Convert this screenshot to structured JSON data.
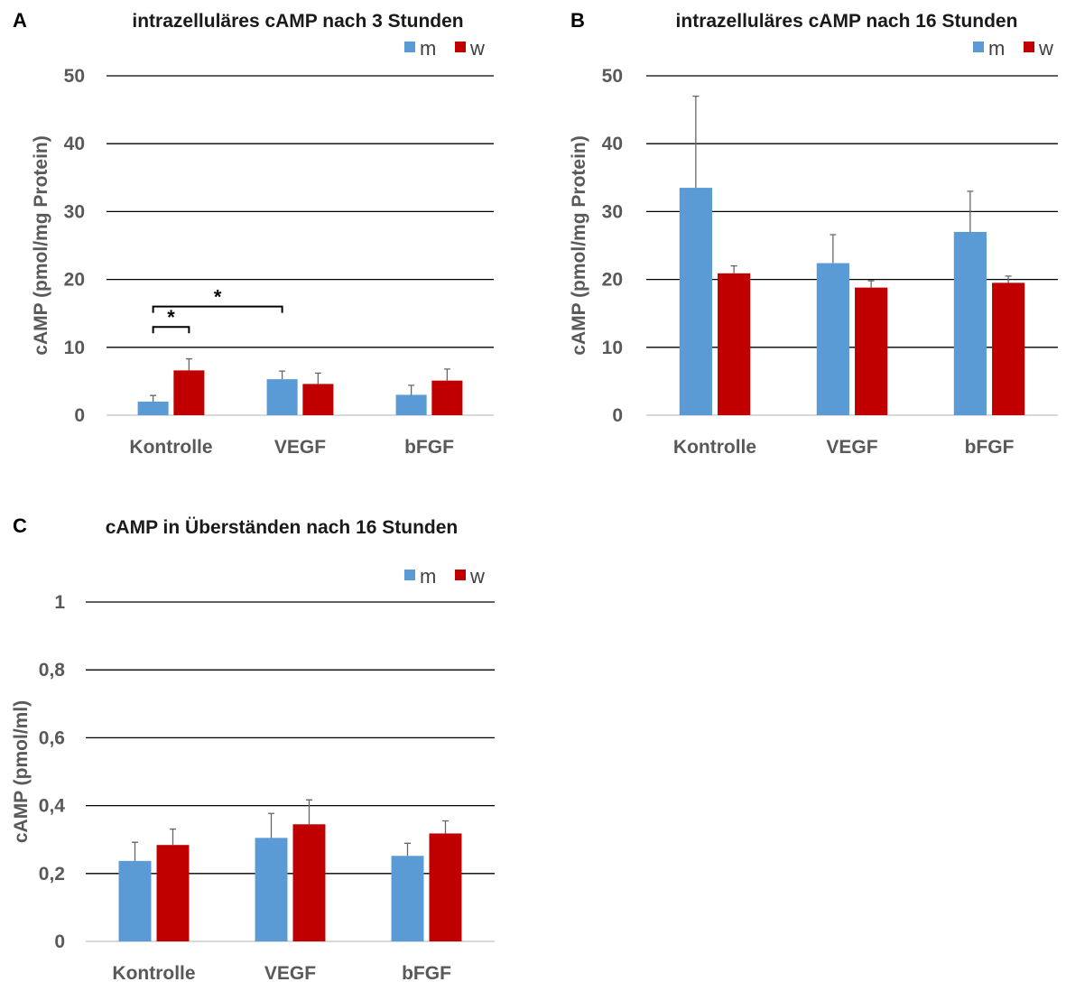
{
  "chart_data": [
    {
      "panel": "A",
      "type": "bar",
      "title": "intrazelluläres cAMP nach 3 Stunden",
      "ylabel": "cAMP (pmol/mg Protein)",
      "xlabel": "",
      "categories": [
        "Kontrolle",
        "VEGF",
        "bFGF"
      ],
      "ylim": [
        0,
        50
      ],
      "yticks": [
        0,
        10,
        20,
        30,
        40,
        50
      ],
      "ytick_labels": [
        "0",
        "10",
        "20",
        "30",
        "40",
        "50"
      ],
      "grid": true,
      "legend_position": "top-right",
      "series": [
        {
          "name": "m",
          "color": "#5b9bd5",
          "values": [
            2.0,
            5.3,
            3.0
          ],
          "errors": [
            0.9,
            1.2,
            1.4
          ]
        },
        {
          "name": "w",
          "color": "#c00000",
          "values": [
            6.6,
            4.6,
            5.1
          ],
          "errors": [
            1.7,
            1.6,
            1.7
          ]
        }
      ],
      "annotations": [
        {
          "text": "*",
          "type": "significance",
          "from": "Kontrolle m",
          "to": "Kontrolle w",
          "y": 13
        },
        {
          "text": "*",
          "type": "significance",
          "from": "Kontrolle m",
          "to": "VEGF m",
          "y": 16
        }
      ]
    },
    {
      "panel": "B",
      "type": "bar",
      "title": "intrazelluläres cAMP nach 16 Stunden",
      "ylabel": "cAMP (pmol/mg Protein)",
      "xlabel": "",
      "categories": [
        "Kontrolle",
        "VEGF",
        "bFGF"
      ],
      "ylim": [
        0,
        50
      ],
      "yticks": [
        0,
        10,
        20,
        30,
        40,
        50
      ],
      "ytick_labels": [
        "0",
        "10",
        "20",
        "30",
        "40",
        "50"
      ],
      "grid": true,
      "legend_position": "top-right",
      "series": [
        {
          "name": "m",
          "color": "#5b9bd5",
          "values": [
            33.5,
            22.4,
            27.0
          ],
          "errors": [
            13.5,
            4.2,
            6.0
          ]
        },
        {
          "name": "w",
          "color": "#c00000",
          "values": [
            20.9,
            18.8,
            19.5
          ],
          "errors": [
            1.1,
            1.0,
            1.0
          ]
        }
      ],
      "annotations": []
    },
    {
      "panel": "C",
      "type": "bar",
      "title": "cAMP in Überständen nach 16 Stunden",
      "ylabel": "cAMP (pmol/ml)",
      "xlabel": "",
      "categories": [
        "Kontrolle",
        "VEGF",
        "bFGF"
      ],
      "ylim": [
        0,
        1
      ],
      "yticks": [
        0,
        0.2,
        0.4,
        0.6,
        0.8,
        1
      ],
      "ytick_labels": [
        "0",
        "0,2",
        "0,4",
        "0,6",
        "0,8",
        "1"
      ],
      "grid": true,
      "legend_position": "top-right",
      "series": [
        {
          "name": "m",
          "color": "#5b9bd5",
          "values": [
            0.237,
            0.305,
            0.252
          ],
          "errors": [
            0.055,
            0.072,
            0.037
          ]
        },
        {
          "name": "w",
          "color": "#c00000",
          "values": [
            0.284,
            0.345,
            0.318
          ],
          "errors": [
            0.047,
            0.072,
            0.037
          ]
        }
      ],
      "annotations": []
    }
  ]
}
